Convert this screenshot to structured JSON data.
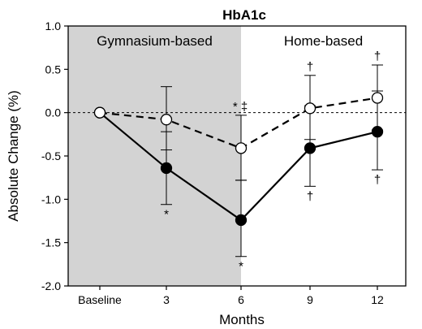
{
  "chart_data": {
    "type": "line",
    "title": "HbA1c",
    "xlabel": "Months",
    "ylabel": "Absolute Change (%)",
    "ylim": [
      -2.0,
      1.0
    ],
    "yticks": [
      "1.0",
      "0.5",
      "0.0",
      "-0.5",
      "-1.0",
      "-1.5",
      "-2.0"
    ],
    "xticks": [
      "Baseline",
      "3",
      "6",
      "9",
      "12"
    ],
    "grid": false,
    "reference_line_y": 0.0,
    "regions": [
      {
        "label": "Gymnasium-based",
        "from": "Baseline",
        "to": "6",
        "shaded": true
      },
      {
        "label": "Home-based",
        "from": "6",
        "to": "12",
        "shaded": false
      }
    ],
    "series": [
      {
        "style": "solid line, filled circles",
        "marker": "filled",
        "values": [
          0.0,
          -0.64,
          -1.24,
          -0.41,
          -0.22
        ],
        "err_upper": [
          0.0,
          0.42,
          0.46,
          0.49,
          0.47
        ],
        "err_lower": [
          0.0,
          0.42,
          0.42,
          0.44,
          0.44
        ],
        "marks": [
          {
            "x_index": 1,
            "text": "*",
            "position": "below"
          },
          {
            "x_index": 2,
            "text": "*",
            "position": "below"
          },
          {
            "x_index": 3,
            "text": "†",
            "position": "below"
          },
          {
            "x_index": 4,
            "text": "†",
            "position": "below"
          }
        ]
      },
      {
        "style": "dashed line, open circles",
        "marker": "open",
        "values": [
          0.0,
          -0.08,
          -0.41,
          0.05,
          0.17
        ],
        "err_upper": [
          0.0,
          0.38,
          0.38,
          0.38,
          0.38
        ],
        "err_lower": [
          0.0,
          0.35,
          0.37,
          0.36,
          0.37
        ],
        "marks": [
          {
            "x_index": 2,
            "text": "* ‡",
            "position": "above"
          },
          {
            "x_index": 3,
            "text": "†",
            "position": "above"
          },
          {
            "x_index": 4,
            "text": "†",
            "position": "above"
          }
        ]
      }
    ]
  }
}
